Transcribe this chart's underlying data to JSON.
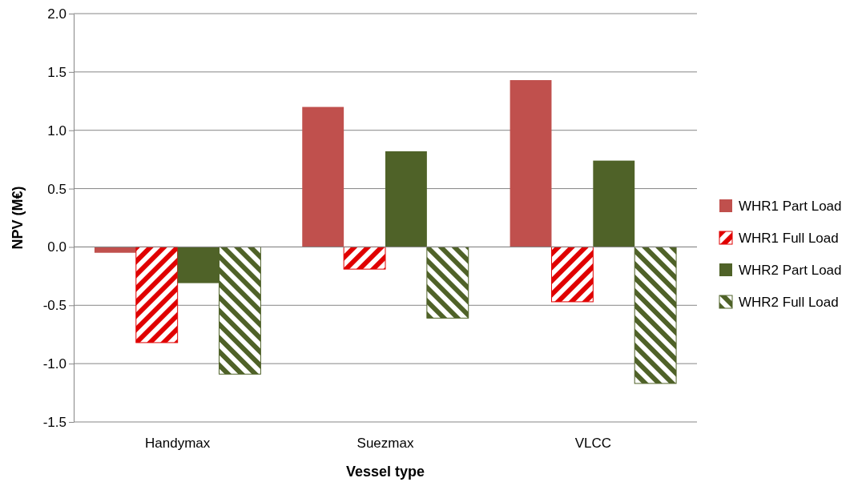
{
  "chart_data": {
    "type": "bar",
    "xlabel": "Vessel type",
    "ylabel": "NPV (M€)",
    "categories": [
      "Handymax",
      "Suezmax",
      "VLCC"
    ],
    "series": [
      {
        "name": "WHR1 Part Load",
        "color": "#c0504d",
        "values": [
          -0.05,
          1.2,
          1.43
        ]
      },
      {
        "name": "WHR1 Full Load",
        "color": "#e00000",
        "values": [
          -0.82,
          -0.19,
          -0.47
        ]
      },
      {
        "name": "WHR2 Part Load",
        "color": "#4f6228",
        "values": [
          -0.31,
          0.82,
          0.74
        ]
      },
      {
        "name": "WHR2 Full Load",
        "color": "#4f6228",
        "values": [
          -1.09,
          -0.61,
          -1.17
        ]
      }
    ],
    "ylim": [
      -1.5,
      2.0
    ],
    "yticks": [
      {
        "value": -1.5,
        "label": "-1.5"
      },
      {
        "value": -1,
        "label": "-1.0"
      },
      {
        "value": -0.5,
        "label": "-0.5"
      },
      {
        "value": 0,
        "label": "0.0"
      },
      {
        "value": 0.5,
        "label": "0.5"
      },
      {
        "value": 1,
        "label": "1.0"
      },
      {
        "value": 1.5,
        "label": "1.5"
      },
      {
        "value": 2,
        "label": "2.0"
      }
    ],
    "grid": "y",
    "legend": "right"
  }
}
